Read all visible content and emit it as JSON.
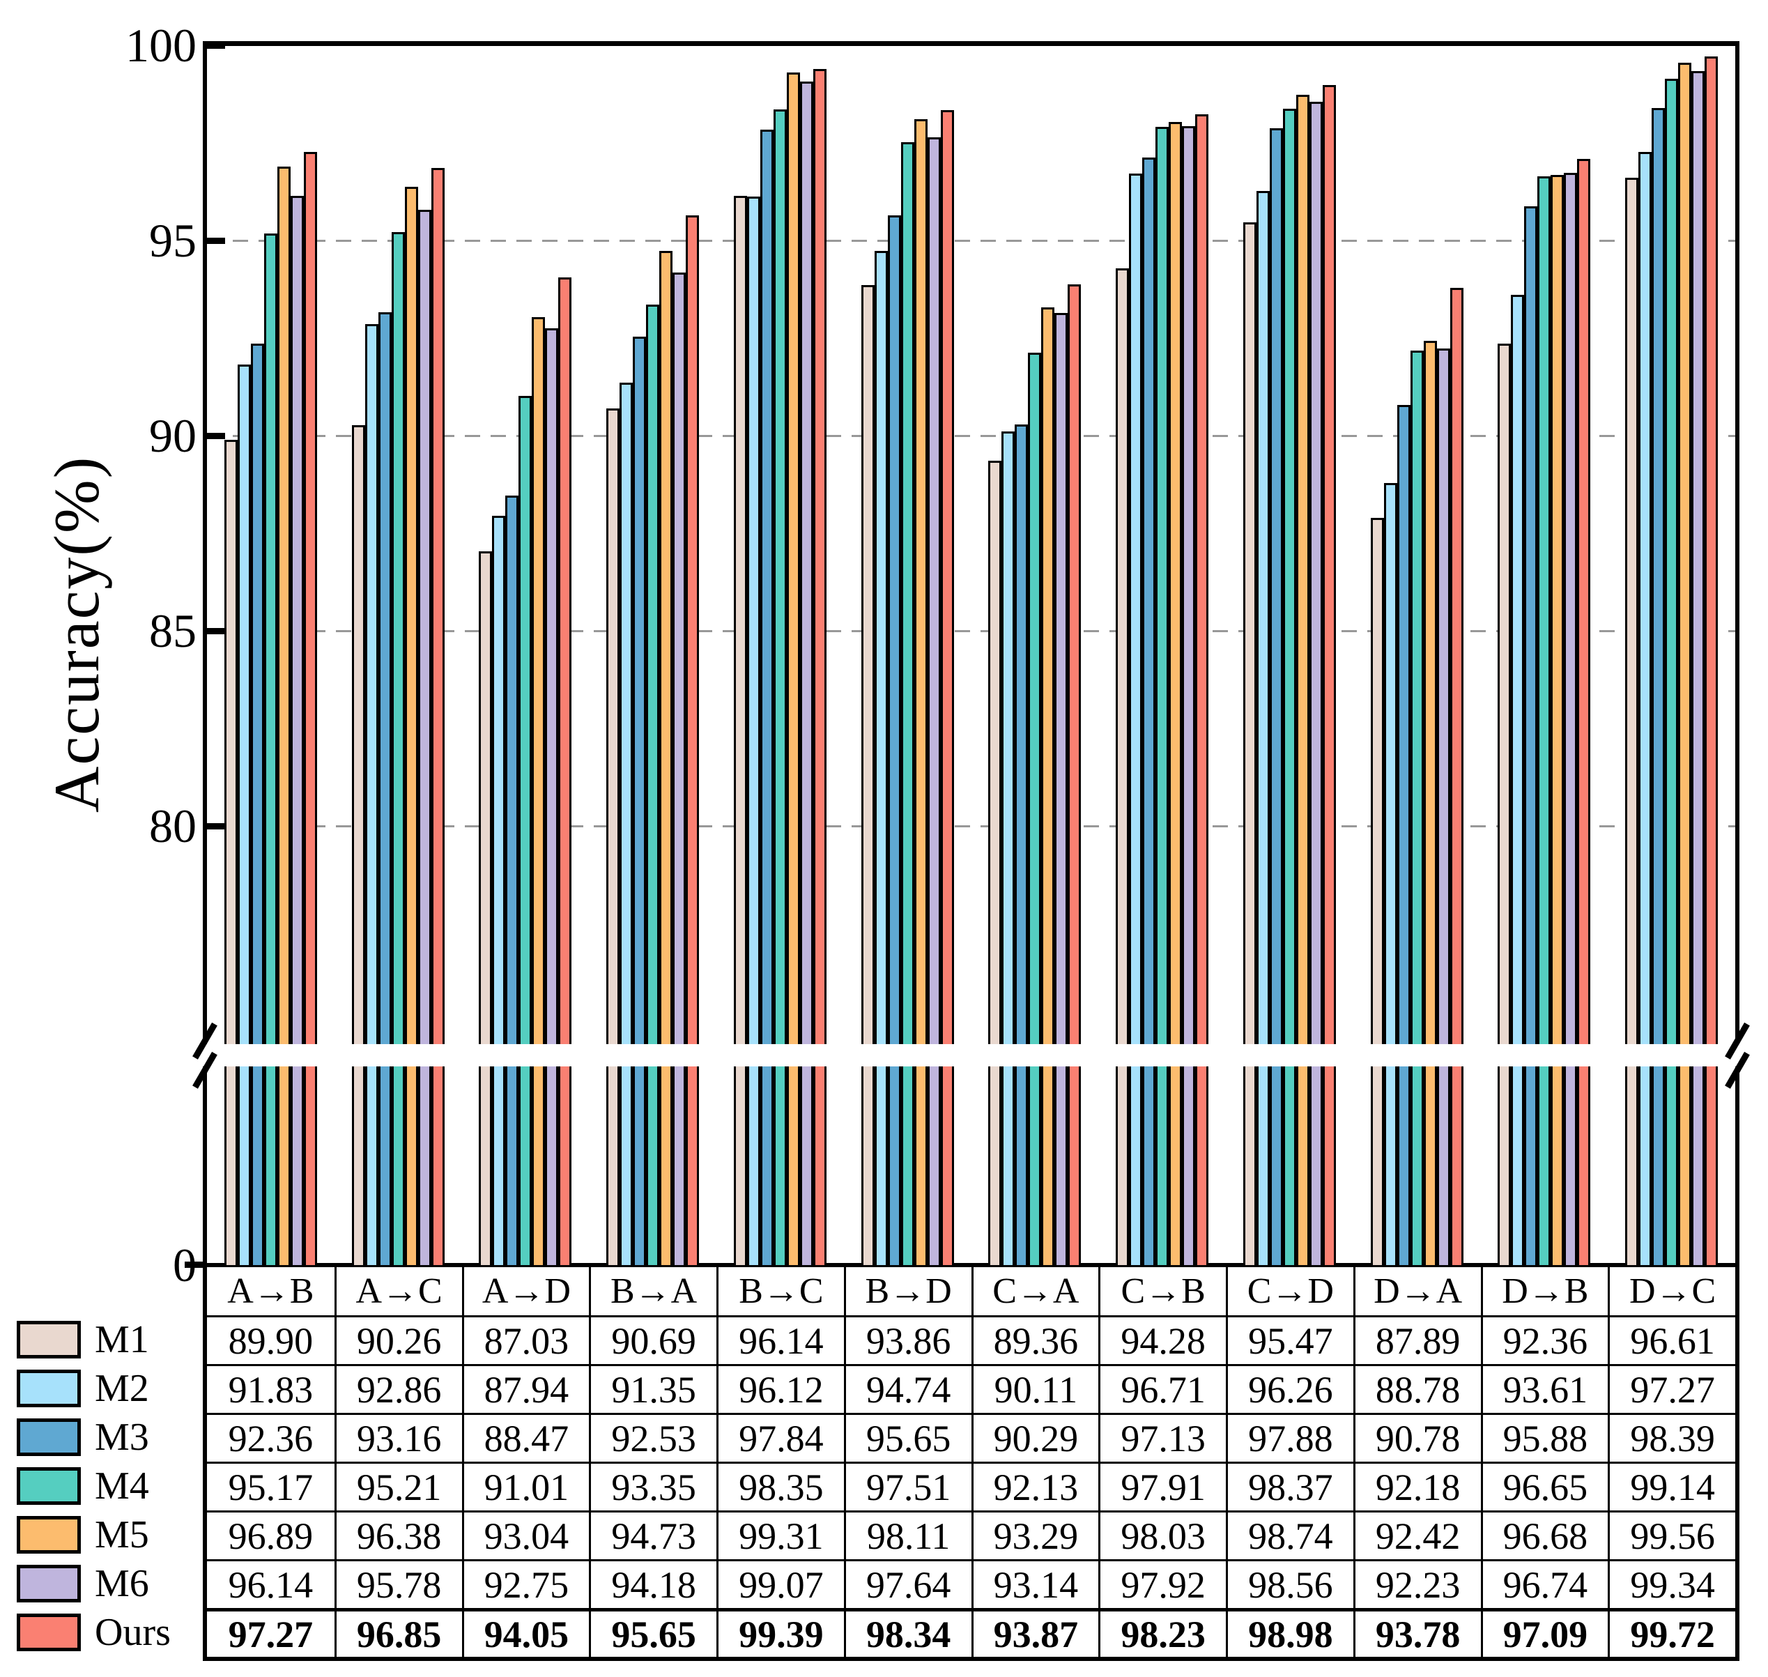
{
  "chart_data": {
    "type": "bar",
    "title": "",
    "xlabel": "",
    "ylabel": "Accuracy(%)",
    "categories": [
      "A→B",
      "A→C",
      "A→D",
      "B→A",
      "B→C",
      "B→D",
      "C→A",
      "C→B",
      "C→D",
      "D→A",
      "D→B",
      "D→C"
    ],
    "series": [
      {
        "name": "M1",
        "color": "#e9d8cf",
        "emphasis": false,
        "values": [
          "89.90",
          "90.26",
          "87.03",
          "90.69",
          "96.14",
          "93.86",
          "89.36",
          "94.28",
          "95.47",
          "87.89",
          "92.36",
          "96.61"
        ]
      },
      {
        "name": "M2",
        "color": "#a7e1fb",
        "emphasis": false,
        "values": [
          "91.83",
          "92.86",
          "87.94",
          "91.35",
          "96.12",
          "94.74",
          "90.11",
          "96.71",
          "96.26",
          "88.78",
          "93.61",
          "97.27"
        ]
      },
      {
        "name": "M3",
        "color": "#5fa8d2",
        "emphasis": false,
        "values": [
          "92.36",
          "93.16",
          "88.47",
          "92.53",
          "97.84",
          "95.65",
          "90.29",
          "97.13",
          "97.88",
          "90.78",
          "95.88",
          "98.39"
        ]
      },
      {
        "name": "M4",
        "color": "#55cec0",
        "emphasis": false,
        "values": [
          "95.17",
          "95.21",
          "91.01",
          "93.35",
          "98.35",
          "97.51",
          "92.13",
          "97.91",
          "98.37",
          "92.18",
          "96.65",
          "99.14"
        ]
      },
      {
        "name": "M5",
        "color": "#fcbc6e",
        "emphasis": false,
        "values": [
          "96.89",
          "96.38",
          "93.04",
          "94.73",
          "99.31",
          "98.11",
          "93.29",
          "98.03",
          "98.74",
          "92.42",
          "96.68",
          "99.56"
        ]
      },
      {
        "name": "M6",
        "color": "#bfb5dd",
        "emphasis": false,
        "values": [
          "96.14",
          "95.78",
          "92.75",
          "94.18",
          "99.07",
          "97.64",
          "93.14",
          "97.92",
          "98.56",
          "92.23",
          "96.74",
          "99.34"
        ]
      },
      {
        "name": "Ours",
        "color": "#fa8072",
        "emphasis": true,
        "values": [
          "97.27",
          "96.85",
          "94.05",
          "95.65",
          "99.39",
          "98.34",
          "93.87",
          "98.23",
          "98.98",
          "93.78",
          "97.09",
          "99.72"
        ]
      }
    ],
    "y_axis": {
      "label": "Accuracy(%)",
      "upper_ticks": [
        "100",
        "95",
        "90",
        "85",
        "80"
      ],
      "lower_tick": "0",
      "gridlines": [
        95,
        90,
        85,
        80
      ],
      "axis_break": true,
      "upper_range": [
        75,
        100
      ],
      "grid_color": "#989898"
    },
    "legend_position": "bottom-left",
    "grid": "dashed-horizontal"
  }
}
